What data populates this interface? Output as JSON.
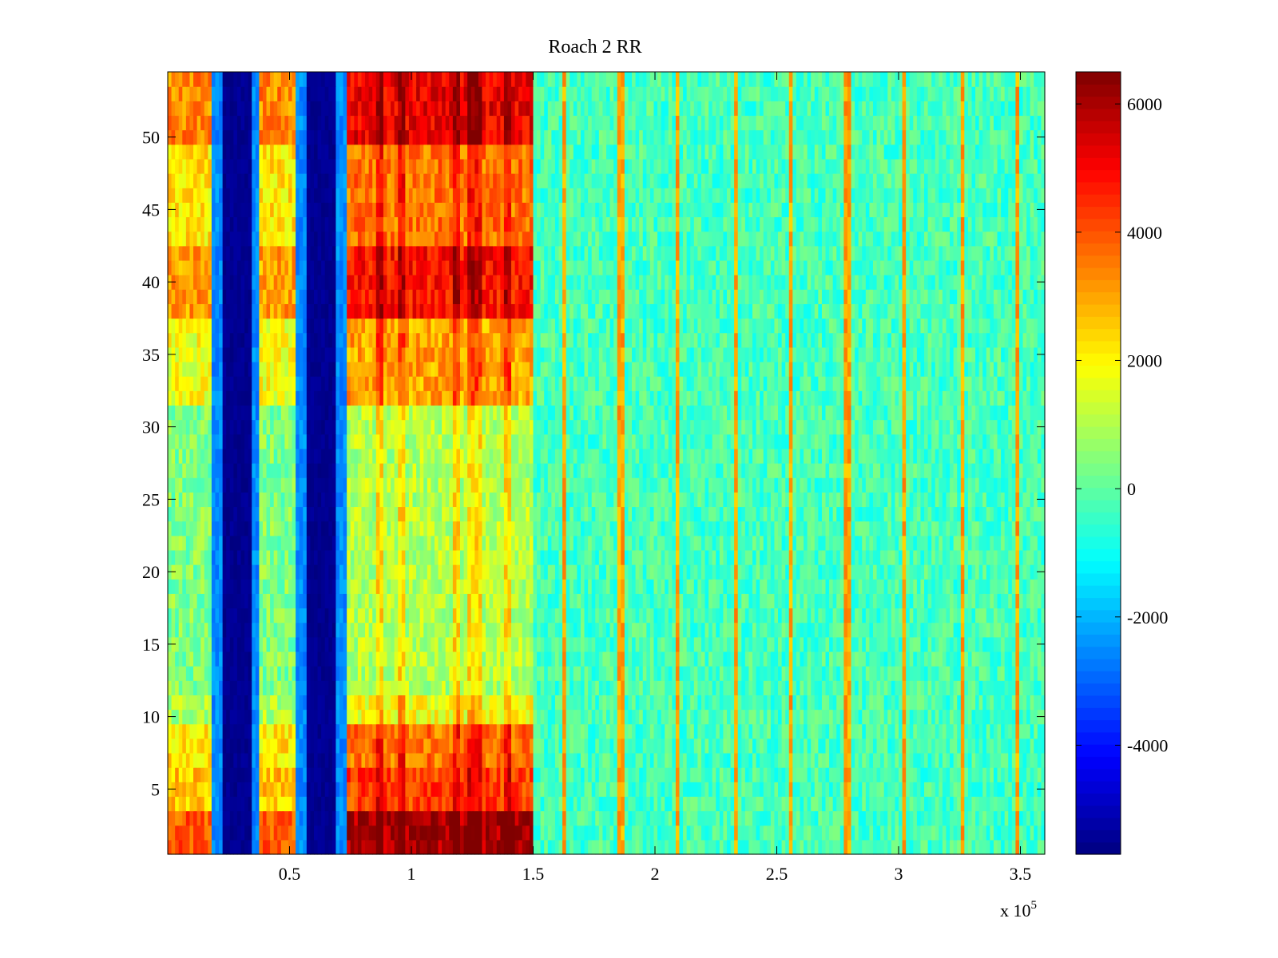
{
  "chart_data": {
    "type": "heatmap",
    "title": "Roach 2 RR",
    "xlabel": "",
    "ylabel": "",
    "x_exponent_label": "x 10",
    "x_exponent_power": "5",
    "xlim": [
      0,
      360000
    ],
    "ylim": [
      0.5,
      54.5
    ],
    "x_ticks": [
      50000,
      100000,
      150000,
      200000,
      250000,
      300000,
      350000
    ],
    "x_tick_labels": [
      "0.5",
      "1",
      "1.5",
      "2",
      "2.5",
      "3",
      "3.5"
    ],
    "y_ticks": [
      5,
      10,
      15,
      20,
      25,
      30,
      35,
      40,
      45,
      50
    ],
    "y_tick_labels": [
      "5",
      "10",
      "15",
      "20",
      "25",
      "30",
      "35",
      "40",
      "45",
      "50"
    ],
    "colormap": "jet",
    "clim": [
      -5700,
      6500
    ],
    "colorbar_ticks": [
      -4000,
      -2000,
      0,
      2000,
      4000,
      6000
    ],
    "colorbar_tick_labels": [
      "-4000",
      "-2000",
      "0",
      "2000",
      "4000",
      "6000"
    ],
    "grid": false,
    "rows": 54,
    "row_profile": [
      {
        "rows": [
          1,
          3
        ],
        "level": 6000
      },
      {
        "rows": [
          4,
          6
        ],
        "level": 4200
      },
      {
        "rows": [
          7,
          9
        ],
        "level": 3600
      },
      {
        "rows": [
          10,
          11
        ],
        "level": 1800
      },
      {
        "rows": [
          12,
          31
        ],
        "level": 1000
      },
      {
        "rows": [
          32,
          37
        ],
        "level": 3000
      },
      {
        "rows": [
          38,
          42
        ],
        "level": 4800
      },
      {
        "rows": [
          43,
          49
        ],
        "level": 3600
      },
      {
        "rows": [
          50,
          54
        ],
        "level": 5200
      }
    ],
    "features": {
      "blue_bands": [
        {
          "x_center": 28000,
          "half_width": 6000,
          "value": -5500
        },
        {
          "x_center": 63000,
          "half_width": 6000,
          "value": -5500
        }
      ],
      "active_region_end": 150000,
      "background_value": -300,
      "stripes_active": [
        87000,
        96000,
        118000,
        125000,
        128000,
        140000
      ],
      "stripes_background": [
        163000,
        186000,
        209000,
        233000,
        256000,
        279000,
        302000,
        326000,
        349000
      ]
    }
  }
}
